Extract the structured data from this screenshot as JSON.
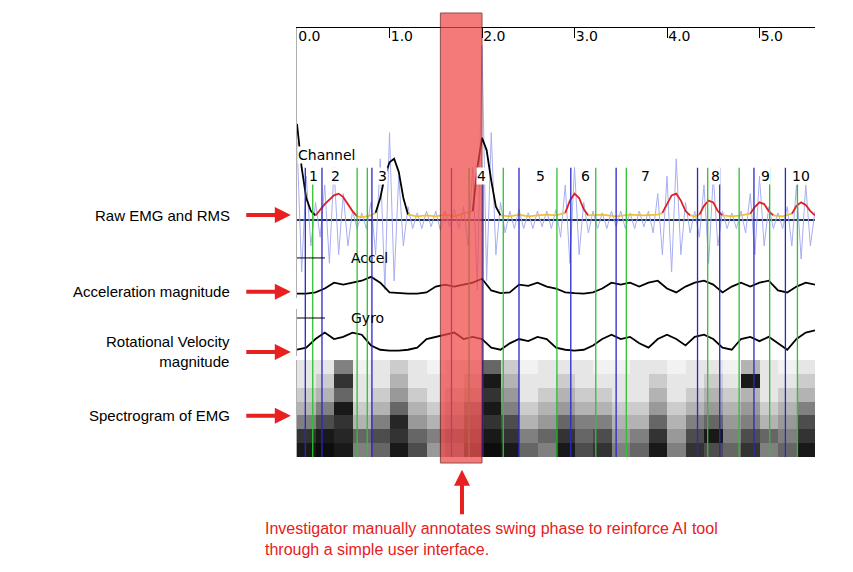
{
  "chart_data": {
    "type": "line",
    "tick_labels": "x",
    "grid": false,
    "xlim": [
      0,
      5.6
    ],
    "xticks": [
      {
        "value": 0,
        "label": "0.0"
      },
      {
        "value": 1,
        "label": "1.0"
      },
      {
        "value": 2,
        "label": "2.0"
      },
      {
        "value": 3,
        "label": "3.0"
      },
      {
        "value": 4,
        "label": "4.0"
      },
      {
        "value": 5,
        "label": "5.0"
      }
    ],
    "ylim": [
      -0.9,
      2.2
    ],
    "yticks": [],
    "y2lim": [
      -0.1,
      1
    ],
    "y2ticks": [],
    "y3lim": [
      -0.1,
      1
    ],
    "y3ticks": [],
    "series": [
      {
        "axis": "y",
        "color": "#a8aef0",
        "line_style": "thin",
        "x": [
          0,
          0.05,
          0.1,
          0.15,
          0.2,
          0.25,
          0.3,
          0.35,
          0.4,
          0.45,
          0.5,
          0.55,
          0.6,
          0.65,
          0.7,
          0.75,
          0.8,
          0.85,
          0.9,
          0.95,
          1.0,
          1.05,
          1.1,
          1.15,
          1.2,
          1.25,
          1.3,
          1.35,
          1.4,
          1.45,
          1.5,
          1.55,
          1.6,
          1.65,
          1.7,
          1.75,
          1.8,
          1.85,
          1.9,
          1.95,
          2.0,
          2.05,
          2.1,
          2.15,
          2.2,
          2.25,
          2.3,
          2.35,
          2.4,
          2.45,
          2.5,
          2.55,
          2.6,
          2.65,
          2.7,
          2.75,
          2.8,
          2.85,
          2.9,
          2.95,
          3.0,
          3.05,
          3.1,
          3.15,
          3.2,
          3.25,
          3.3,
          3.35,
          3.4,
          3.45,
          3.5,
          3.55,
          3.6,
          3.65,
          3.7,
          3.75,
          3.8,
          3.85,
          3.9,
          3.95,
          4.0,
          4.05,
          4.1,
          4.15,
          4.2,
          4.25,
          4.3,
          4.35,
          4.4,
          4.45,
          4.5,
          4.55,
          4.6,
          4.65,
          4.7,
          4.75,
          4.8,
          4.85,
          4.9,
          4.95,
          5.0,
          5.05,
          5.1,
          5.15,
          5.2,
          5.25,
          5.3,
          5.35,
          5.4,
          5.45,
          5.5,
          5.55,
          5.6
        ],
        "values": [
          0.9,
          -0.6,
          0.5,
          -0.3,
          0.2,
          -0.2,
          0.4,
          -0.5,
          0.6,
          -0.4,
          0.3,
          -0.3,
          0.1,
          -0.1,
          0.08,
          -0.1,
          0.2,
          -0.4,
          0.7,
          -0.8,
          1.0,
          -0.7,
          0.5,
          -0.3,
          0.15,
          -0.1,
          0.08,
          -0.1,
          0.1,
          -0.08,
          0.1,
          -0.12,
          0.1,
          -0.08,
          0.12,
          -0.1,
          0.15,
          -0.3,
          0.6,
          -0.8,
          2.0,
          -0.7,
          1.0,
          -0.4,
          0.2,
          -0.15,
          0.1,
          -0.1,
          0.12,
          -0.1,
          0.08,
          -0.1,
          0.1,
          -0.08,
          0.1,
          -0.1,
          0.12,
          -0.2,
          0.4,
          -0.5,
          0.6,
          -0.4,
          0.2,
          -0.15,
          0.1,
          -0.1,
          0.08,
          -0.1,
          0.1,
          -0.08,
          0.1,
          -0.1,
          0.08,
          -0.1,
          0.1,
          -0.08,
          0.1,
          -0.15,
          0.3,
          -0.4,
          0.5,
          -0.6,
          0.7,
          -0.4,
          0.2,
          -0.15,
          0.1,
          -0.2,
          0.4,
          -0.5,
          0.5,
          -0.3,
          0.1,
          -0.1,
          0.08,
          -0.1,
          0.1,
          -0.15,
          0.3,
          -0.4,
          0.5,
          -0.3,
          0.15,
          -0.1,
          0.08,
          -0.1,
          0.15,
          -0.3,
          0.4,
          -0.45,
          0.4,
          -0.3,
          0.1
        ]
      },
      {
        "axis": "y",
        "color": "#000000",
        "x": [
          0,
          0.05,
          0.1,
          0.15,
          0.2
        ],
        "values": [
          1.1,
          0.6,
          0.25,
          0.1,
          0.05
        ]
      },
      {
        "axis": "y",
        "color": "#e02020",
        "x": [
          0.2,
          0.3,
          0.4,
          0.45,
          0.5,
          0.6,
          0.65
        ],
        "values": [
          0.05,
          0.18,
          0.28,
          0.3,
          0.26,
          0.1,
          0.04
        ]
      },
      {
        "axis": "y",
        "color": "#f0c030",
        "x": [
          0.65,
          0.7,
          0.75,
          0.8,
          0.85
        ],
        "values": [
          0.04,
          0.03,
          0.04,
          0.05,
          0.08
        ]
      },
      {
        "axis": "y",
        "color": "#000000",
        "x": [
          0.85,
          0.9,
          0.95,
          1.0,
          1.05,
          1.1,
          1.15,
          1.2
        ],
        "values": [
          0.08,
          0.25,
          0.5,
          0.66,
          0.7,
          0.55,
          0.25,
          0.06
        ]
      },
      {
        "axis": "y",
        "color": "#f0c030",
        "x": [
          1.2,
          1.3,
          1.4,
          1.5,
          1.6,
          1.7,
          1.8,
          1.9
        ],
        "values": [
          0.06,
          0.04,
          0.05,
          0.04,
          0.06,
          0.04,
          0.07,
          0.1
        ]
      },
      {
        "axis": "y",
        "color": "#000000",
        "x": [
          1.9,
          1.95,
          2.0,
          2.05,
          2.1,
          2.15,
          2.2
        ],
        "values": [
          0.1,
          0.6,
          0.94,
          0.8,
          0.45,
          0.15,
          0.05
        ]
      },
      {
        "axis": "y",
        "color": "#f0c030",
        "x": [
          2.2,
          2.3,
          2.4,
          2.5,
          2.6,
          2.7,
          2.8,
          2.9
        ],
        "values": [
          0.05,
          0.04,
          0.06,
          0.04,
          0.05,
          0.06,
          0.05,
          0.08
        ]
      },
      {
        "axis": "y",
        "color": "#e02020",
        "x": [
          2.9,
          2.95,
          3.0,
          3.05,
          3.1,
          3.15
        ],
        "values": [
          0.08,
          0.22,
          0.3,
          0.25,
          0.12,
          0.05
        ]
      },
      {
        "axis": "y",
        "color": "#f0c030",
        "x": [
          3.15,
          3.3,
          3.45,
          3.6,
          3.75,
          3.9,
          3.95
        ],
        "values": [
          0.05,
          0.06,
          0.04,
          0.06,
          0.05,
          0.06,
          0.08
        ]
      },
      {
        "axis": "y",
        "color": "#e02020",
        "x": [
          3.95,
          4.0,
          4.05,
          4.1,
          4.15,
          4.2,
          4.25
        ],
        "values": [
          0.08,
          0.18,
          0.28,
          0.3,
          0.22,
          0.1,
          0.05
        ]
      },
      {
        "axis": "y",
        "color": "#f0c030",
        "x": [
          4.25,
          4.3,
          4.35
        ],
        "values": [
          0.05,
          0.04,
          0.06
        ]
      },
      {
        "axis": "y",
        "color": "#e02020",
        "x": [
          4.35,
          4.4,
          4.45,
          4.5,
          4.55,
          4.6
        ],
        "values": [
          0.06,
          0.16,
          0.22,
          0.2,
          0.1,
          0.05
        ]
      },
      {
        "axis": "y",
        "color": "#f0c030",
        "x": [
          4.6,
          4.7,
          4.8,
          4.9
        ],
        "values": [
          0.05,
          0.04,
          0.05,
          0.07
        ]
      },
      {
        "axis": "y",
        "color": "#e02020",
        "x": [
          4.9,
          4.95,
          5.0,
          5.05,
          5.1,
          5.15
        ],
        "values": [
          0.07,
          0.15,
          0.2,
          0.18,
          0.1,
          0.05
        ]
      },
      {
        "axis": "y",
        "color": "#f0c030",
        "x": [
          5.15,
          5.25,
          5.35
        ],
        "values": [
          0.05,
          0.04,
          0.07
        ]
      },
      {
        "axis": "y",
        "color": "#e02020",
        "x": [
          5.35,
          5.4,
          5.45,
          5.5,
          5.55,
          5.6
        ],
        "values": [
          0.07,
          0.16,
          0.2,
          0.17,
          0.1,
          0.05
        ]
      },
      {
        "axis": "y2",
        "color": "#000000",
        "x": [
          0,
          0.1,
          0.2,
          0.3,
          0.4,
          0.5,
          0.6,
          0.7,
          0.8,
          0.9,
          1.0,
          1.1,
          1.2,
          1.3,
          1.4,
          1.5,
          1.6,
          1.7,
          1.8,
          1.9,
          2.0,
          2.1,
          2.2,
          2.3,
          2.4,
          2.5,
          2.6,
          2.7,
          2.8,
          2.9,
          3.0,
          3.1,
          3.2,
          3.3,
          3.4,
          3.5,
          3.6,
          3.7,
          3.8,
          3.9,
          4.0,
          4.1,
          4.2,
          4.3,
          4.4,
          4.5,
          4.6,
          4.7,
          4.8,
          4.9,
          5.0,
          5.1,
          5.2,
          5.3,
          5.4,
          5.5,
          5.6
        ],
        "values": [
          0.02,
          0.02,
          0.05,
          0.15,
          0.3,
          0.25,
          0.3,
          0.35,
          0.45,
          0.3,
          0.05,
          0.03,
          0.02,
          0.02,
          0.05,
          0.2,
          0.25,
          0.2,
          0.25,
          0.3,
          0.4,
          0.1,
          0.03,
          0.05,
          0.25,
          0.22,
          0.3,
          0.2,
          0.15,
          0.05,
          0.03,
          0.02,
          0.05,
          0.15,
          0.3,
          0.25,
          0.3,
          0.2,
          0.3,
          0.35,
          0.15,
          0.05,
          0.2,
          0.3,
          0.35,
          0.25,
          0.05,
          0.2,
          0.3,
          0.2,
          0.3,
          0.35,
          0.1,
          0.05,
          0.2,
          0.3,
          0.25
        ]
      },
      {
        "axis": "y3",
        "color": "#000000",
        "x": [
          0,
          0.1,
          0.2,
          0.3,
          0.4,
          0.5,
          0.6,
          0.7,
          0.8,
          0.9,
          1.0,
          1.1,
          1.2,
          1.3,
          1.4,
          1.5,
          1.6,
          1.7,
          1.8,
          1.9,
          2.0,
          2.1,
          2.2,
          2.3,
          2.4,
          2.5,
          2.6,
          2.7,
          2.8,
          2.9,
          3.0,
          3.1,
          3.2,
          3.3,
          3.4,
          3.5,
          3.6,
          3.7,
          3.8,
          3.9,
          4.0,
          4.1,
          4.2,
          4.3,
          4.4,
          4.5,
          4.6,
          4.7,
          4.8,
          4.9,
          5.0,
          5.1,
          5.2,
          5.3,
          5.4,
          5.5,
          5.6
        ],
        "values": [
          0.05,
          0.1,
          0.3,
          0.45,
          0.3,
          0.35,
          0.45,
          0.4,
          0.15,
          0.05,
          0.03,
          0.03,
          0.05,
          0.1,
          0.3,
          0.35,
          0.4,
          0.45,
          0.3,
          0.35,
          0.3,
          0.1,
          0.05,
          0.2,
          0.3,
          0.25,
          0.35,
          0.3,
          0.1,
          0.05,
          0.03,
          0.05,
          0.15,
          0.3,
          0.4,
          0.3,
          0.35,
          0.2,
          0.1,
          0.3,
          0.4,
          0.3,
          0.15,
          0.35,
          0.4,
          0.3,
          0.1,
          0.05,
          0.3,
          0.35,
          0.25,
          0.35,
          0.2,
          0.05,
          0.3,
          0.45,
          0.5
        ]
      }
    ],
    "spectrogram": {
      "x": [
        0.1,
        0.3,
        0.5,
        0.7,
        0.9,
        1.1,
        1.3,
        1.5,
        1.7,
        1.9,
        2.1,
        2.3,
        2.5,
        2.7,
        2.9,
        3.1,
        3.3,
        3.5,
        3.7,
        3.9,
        4.1,
        4.3,
        4.5,
        4.7,
        4.9,
        5.1,
        5.3,
        5.5
      ],
      "z": [
        [
          0.9,
          0.95,
          0.9,
          0.5,
          0.6,
          0.9,
          0.7,
          0.4,
          0.5,
          0.8,
          0.95,
          0.9,
          0.6,
          0.5,
          0.9,
          0.7,
          0.8,
          0.5,
          0.6,
          0.9,
          0.5,
          0.8,
          0.7,
          0.6,
          0.8,
          0.5,
          0.6,
          0.9
        ],
        [
          0.8,
          0.9,
          0.85,
          0.6,
          0.7,
          0.8,
          0.6,
          0.5,
          0.6,
          0.7,
          0.9,
          0.8,
          0.5,
          0.6,
          0.8,
          0.6,
          0.7,
          0.4,
          0.5,
          0.8,
          0.4,
          0.7,
          0.9,
          0.5,
          0.7,
          0.6,
          0.5,
          0.8
        ],
        [
          0.5,
          0.7,
          0.8,
          0.3,
          0.5,
          0.85,
          0.4,
          0.3,
          0.4,
          0.6,
          0.8,
          0.7,
          0.3,
          0.4,
          0.6,
          0.5,
          0.5,
          0.3,
          0.3,
          0.6,
          0.3,
          0.5,
          0.6,
          0.4,
          0.5,
          0.3,
          0.4,
          0.7
        ],
        [
          0.3,
          0.5,
          0.9,
          0.2,
          0.3,
          0.6,
          0.3,
          0.2,
          0.3,
          0.5,
          0.9,
          0.5,
          0.2,
          0.3,
          0.4,
          0.3,
          0.3,
          0.2,
          0.2,
          0.4,
          0.2,
          0.3,
          0.4,
          0.3,
          0.4,
          0.2,
          0.3,
          0.5
        ],
        [
          0.2,
          0.3,
          0.6,
          0.1,
          0.2,
          0.4,
          0.2,
          0.1,
          0.2,
          0.3,
          0.8,
          0.4,
          0.1,
          0.2,
          0.3,
          0.2,
          0.2,
          0.1,
          0.1,
          0.3,
          0.1,
          0.2,
          0.3,
          0.2,
          0.3,
          0.1,
          0.2,
          0.3
        ],
        [
          0.1,
          0.2,
          0.8,
          0.1,
          0.1,
          0.3,
          0.1,
          0.1,
          0.1,
          0.2,
          0.9,
          0.3,
          0.1,
          0.1,
          0.2,
          0.1,
          0.1,
          0.1,
          0.1,
          0.2,
          0.1,
          0.1,
          0.2,
          0.1,
          0.9,
          0.1,
          0.1,
          0.2
        ],
        [
          0.1,
          0.1,
          0.5,
          0.05,
          0.1,
          0.2,
          0.1,
          0.05,
          0.1,
          0.1,
          0.6,
          0.2,
          0.05,
          0.1,
          0.1,
          0.1,
          0.05,
          0.05,
          0.1,
          0.1,
          0.05,
          0.1,
          0.1,
          0.05,
          0.3,
          0.1,
          0.05,
          0.1
        ]
      ],
      "zlim": [
        0,
        1
      ],
      "ylim": [
        -0.5,
        6.5
      ],
      "colorscale": [
        "#ffffff",
        "#000000"
      ]
    },
    "channels": {
      "title": "Channel",
      "labels": [
        {
          "text": "1",
          "x": 0.12
        },
        {
          "text": "2",
          "x": 0.36
        },
        {
          "text": "3",
          "x": 0.87
        },
        {
          "text": "4",
          "x": 1.93
        },
        {
          "text": "5",
          "x": 2.57
        },
        {
          "text": "6",
          "x": 3.06
        },
        {
          "text": "7",
          "x": 3.71
        },
        {
          "text": "8",
          "x": 4.47
        },
        {
          "text": "9",
          "x": 5.0
        },
        {
          "text": "10",
          "x": 5.34
        }
      ]
    },
    "event_lines": [
      {
        "color": "#2828c8",
        "x": [
          0.09,
          0.27,
          0.81,
          1.67,
          2.01,
          2.4,
          2.96,
          3.45,
          4.33,
          4.57,
          4.94,
          5.28
        ]
      },
      {
        "color": "#30c030",
        "x": [
          0.17,
          0.65,
          0.76,
          1.86,
          2.23,
          2.81,
          3.23,
          3.56,
          4.44,
          4.78,
          5.11,
          5.41
        ]
      }
    ],
    "trace_labels": {
      "accel": "Accel",
      "gyro": "Gyro"
    },
    "row_labels": [
      "Raw EMG and RMS",
      "Acceleration magnitude",
      [
        "Rotational Velocity",
        "magnitude"
      ],
      "Spectrogram of EMG"
    ],
    "highlight": {
      "x0": 1.55,
      "x1": 2.0,
      "color": "#f04848"
    },
    "note": [
      "Investigator manually annotates swing phase to reinforce AI tool",
      "through a simple user interface."
    ]
  }
}
